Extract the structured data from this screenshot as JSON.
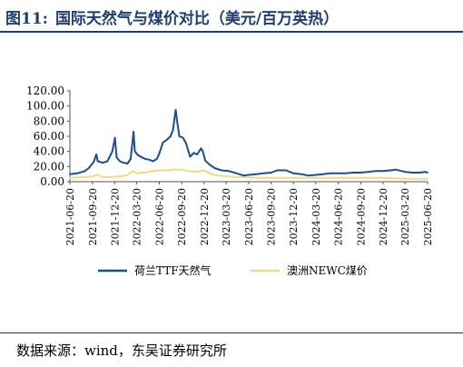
{
  "figure": {
    "number": "图11:",
    "title": "国际天然气与煤价对比（美元/百万英热）",
    "source": "数据来源：wind，东吴证券研究所"
  },
  "chart_data": {
    "type": "line",
    "ylim": [
      0,
      120
    ],
    "y_ticks": [
      "0.00",
      "20.00",
      "40.00",
      "60.00",
      "80.00",
      "100.00",
      "120.00"
    ],
    "x_range": [
      "2021-06-20",
      "2025-06-20"
    ],
    "x_ticks": [
      "2021-06-20",
      "2021-09-20",
      "2021-12-20",
      "2022-03-20",
      "2022-06-20",
      "2022-09-20",
      "2022-12-20",
      "2023-03-20",
      "2023-06-20",
      "2023-09-20",
      "2023-12-20",
      "2024-03-20",
      "2024-06-20",
      "2024-09-20",
      "2024-12-20",
      "2025-03-20",
      "2025-06-20"
    ],
    "legend_position": "bottom",
    "grid": false,
    "series": [
      {
        "name": "荷兰TTF天然气",
        "color": "#1f4e8c",
        "points": [
          [
            "2021-06-20",
            10
          ],
          [
            "2021-07-20",
            11
          ],
          [
            "2021-08-20",
            14
          ],
          [
            "2021-09-05",
            18
          ],
          [
            "2021-09-25",
            26
          ],
          [
            "2021-10-06",
            36
          ],
          [
            "2021-10-12",
            27
          ],
          [
            "2021-11-01",
            25
          ],
          [
            "2021-11-20",
            27
          ],
          [
            "2021-12-10",
            40
          ],
          [
            "2021-12-21",
            58
          ],
          [
            "2021-12-28",
            32
          ],
          [
            "2022-01-10",
            27
          ],
          [
            "2022-01-25",
            25
          ],
          [
            "2022-02-10",
            24
          ],
          [
            "2022-02-23",
            30
          ],
          [
            "2022-03-07",
            66
          ],
          [
            "2022-03-12",
            40
          ],
          [
            "2022-03-25",
            35
          ],
          [
            "2022-04-10",
            32
          ],
          [
            "2022-04-25",
            30
          ],
          [
            "2022-05-10",
            29
          ],
          [
            "2022-05-25",
            27
          ],
          [
            "2022-06-10",
            30
          ],
          [
            "2022-06-20",
            37
          ],
          [
            "2022-07-05",
            52
          ],
          [
            "2022-07-20",
            55
          ],
          [
            "2022-08-05",
            60
          ],
          [
            "2022-08-15",
            68
          ],
          [
            "2022-08-26",
            95
          ],
          [
            "2022-09-01",
            80
          ],
          [
            "2022-09-10",
            60
          ],
          [
            "2022-09-25",
            58
          ],
          [
            "2022-10-08",
            50
          ],
          [
            "2022-10-24",
            33
          ],
          [
            "2022-11-08",
            38
          ],
          [
            "2022-11-22",
            36
          ],
          [
            "2022-12-08",
            44
          ],
          [
            "2022-12-15",
            40
          ],
          [
            "2022-12-25",
            28
          ],
          [
            "2023-01-10",
            23
          ],
          [
            "2023-02-01",
            18
          ],
          [
            "2023-03-01",
            15
          ],
          [
            "2023-04-01",
            14
          ],
          [
            "2023-05-01",
            11
          ],
          [
            "2023-06-01",
            8
          ],
          [
            "2023-06-20",
            9
          ],
          [
            "2023-07-20",
            10
          ],
          [
            "2023-08-20",
            11
          ],
          [
            "2023-09-20",
            12
          ],
          [
            "2023-10-15",
            15
          ],
          [
            "2023-11-20",
            15
          ],
          [
            "2023-12-20",
            11
          ],
          [
            "2024-01-20",
            10
          ],
          [
            "2024-02-20",
            8
          ],
          [
            "2024-03-20",
            9
          ],
          [
            "2024-04-20",
            10
          ],
          [
            "2024-05-20",
            11
          ],
          [
            "2024-06-20",
            11
          ],
          [
            "2024-07-20",
            11
          ],
          [
            "2024-08-20",
            12
          ],
          [
            "2024-09-20",
            12
          ],
          [
            "2024-10-20",
            13
          ],
          [
            "2024-11-20",
            14
          ],
          [
            "2024-12-20",
            14
          ],
          [
            "2025-01-20",
            15
          ],
          [
            "2025-02-10",
            16
          ],
          [
            "2025-03-20",
            13
          ],
          [
            "2025-04-20",
            12
          ],
          [
            "2025-05-20",
            12
          ],
          [
            "2025-06-10",
            13
          ],
          [
            "2025-06-20",
            12
          ]
        ]
      },
      {
        "name": "澳洲NEWC煤价",
        "color": "#f0d98c",
        "points": [
          [
            "2021-06-20",
            5
          ],
          [
            "2021-08-20",
            6
          ],
          [
            "2021-09-20",
            7
          ],
          [
            "2021-10-10",
            9
          ],
          [
            "2021-11-01",
            6
          ],
          [
            "2021-12-01",
            6
          ],
          [
            "2022-01-05",
            7
          ],
          [
            "2022-02-05",
            8
          ],
          [
            "2022-03-05",
            14
          ],
          [
            "2022-03-20",
            11
          ],
          [
            "2022-04-20",
            12
          ],
          [
            "2022-05-20",
            14
          ],
          [
            "2022-06-20",
            15
          ],
          [
            "2022-07-20",
            15
          ],
          [
            "2022-08-20",
            16
          ],
          [
            "2022-09-20",
            16
          ],
          [
            "2022-10-20",
            14
          ],
          [
            "2022-11-20",
            13
          ],
          [
            "2022-12-20",
            15
          ],
          [
            "2023-01-20",
            10
          ],
          [
            "2023-02-20",
            8
          ],
          [
            "2023-03-20",
            7
          ],
          [
            "2023-05-20",
            6
          ],
          [
            "2023-07-20",
            5
          ],
          [
            "2023-09-20",
            5
          ],
          [
            "2023-12-20",
            5
          ],
          [
            "2024-03-20",
            5
          ],
          [
            "2024-06-20",
            5
          ],
          [
            "2024-09-20",
            5
          ],
          [
            "2024-12-20",
            5
          ],
          [
            "2025-03-20",
            4
          ],
          [
            "2025-06-20",
            4
          ]
        ]
      }
    ]
  }
}
